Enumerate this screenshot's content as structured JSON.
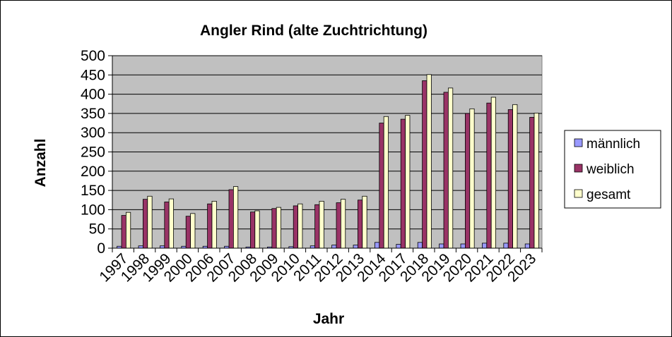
{
  "chart_data": {
    "type": "bar",
    "title": "Angler Rind (alte Zuchtrichtung)",
    "xlabel": "Jahr",
    "ylabel": "Anzahl",
    "ylim": [
      0,
      500
    ],
    "yticks": [
      0,
      50,
      100,
      150,
      200,
      250,
      300,
      350,
      400,
      450,
      500
    ],
    "grid": true,
    "legend_position": "right",
    "categories": [
      "1997",
      "1998",
      "1999",
      "2000",
      "2006",
      "2007",
      "2008",
      "2009",
      "2010",
      "2011",
      "2012",
      "2013",
      "2014",
      "2017",
      "2018",
      "2019",
      "2020",
      "2021",
      "2022",
      "2023"
    ],
    "series": [
      {
        "name": "männlich",
        "color": "#9999ff",
        "values": [
          5,
          6,
          6,
          5,
          5,
          5,
          3,
          3,
          4,
          6,
          8,
          8,
          15,
          10,
          15,
          11,
          11,
          13,
          13,
          11
        ]
      },
      {
        "name": "weiblich",
        "color": "#993366",
        "values": [
          85,
          127,
          120,
          83,
          115,
          152,
          94,
          103,
          110,
          113,
          118,
          125,
          325,
          335,
          435,
          405,
          350,
          377,
          360,
          340
        ]
      },
      {
        "name": "gesamt",
        "color": "#ffffcc",
        "values": [
          93,
          135,
          128,
          90,
          122,
          160,
          97,
          106,
          115,
          122,
          127,
          135,
          342,
          345,
          451,
          416,
          362,
          392,
          373,
          351
        ]
      }
    ]
  }
}
